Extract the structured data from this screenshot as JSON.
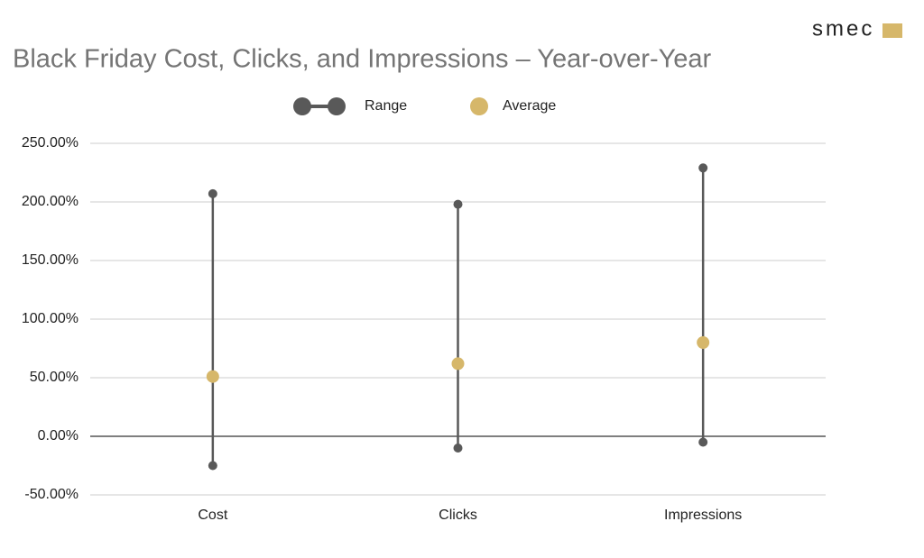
{
  "brand": "smec",
  "chart_data": {
    "type": "range",
    "title": "Black Friday Cost, Clicks, and Impressions – Year-over-Year",
    "categories": [
      "Cost",
      "Clicks",
      "Impressions"
    ],
    "series": [
      {
        "name": "Range",
        "color": "#595959",
        "low": [
          -25,
          -10,
          -5
        ],
        "high": [
          207,
          198,
          229
        ]
      },
      {
        "name": "Average",
        "color": "#d6b76a",
        "values": [
          51,
          62,
          80
        ]
      }
    ],
    "ylim": [
      -50,
      250
    ],
    "yticks": [
      {
        "value": -50,
        "label": "-50.00%"
      },
      {
        "value": 0,
        "label": "0.00%"
      },
      {
        "value": 50,
        "label": "50.00%"
      },
      {
        "value": 100,
        "label": "100.00%"
      },
      {
        "value": 150,
        "label": "150.00%"
      },
      {
        "value": 200,
        "label": "200.00%"
      },
      {
        "value": 250,
        "label": "250.00%"
      }
    ],
    "grid": true
  }
}
